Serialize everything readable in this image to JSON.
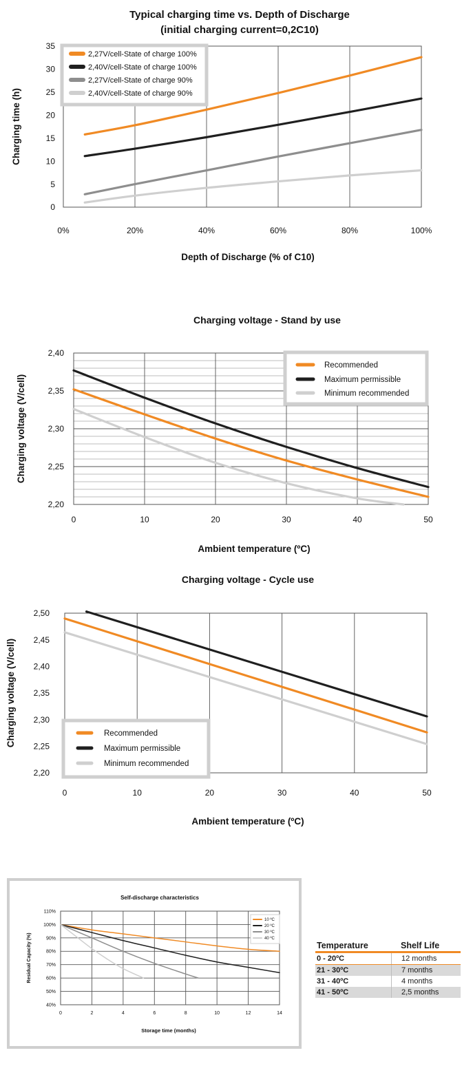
{
  "colors": {
    "orange": "#f08a24",
    "black": "#1f1f1f",
    "gray": "#8e8e8e",
    "lightgray": "#cfcfcf",
    "grid": "#5a5a5a",
    "legend_border": "#cfcfcf"
  },
  "chart_data": [
    {
      "type": "line",
      "title": "Typical charging time vs. Depth of Discharge",
      "subtitle": "(initial charging current=0,2C10)",
      "xlabel": "Depth of Discharge (% of C10)",
      "ylabel": "Charging time (h)",
      "xlim": [
        0,
        100
      ],
      "ylim": [
        0,
        35
      ],
      "xticks": [
        0,
        20,
        40,
        60,
        80,
        100
      ],
      "xtick_labels": [
        "0%",
        "20%",
        "40%",
        "60%",
        "80%",
        "100%"
      ],
      "yticks": [
        0,
        5,
        10,
        15,
        20,
        25,
        30,
        35
      ],
      "ytick_labels": [
        "0",
        "5",
        "10",
        "15",
        "20",
        "25",
        "30",
        "35"
      ],
      "grid": "vertical",
      "legend_position": "top-left",
      "series": [
        {
          "name": "2,27V/cell-State of charge 100%",
          "color": "orange",
          "x": [
            6,
            20,
            40,
            60,
            80,
            100
          ],
          "y": [
            15.8,
            17.8,
            21.2,
            24.8,
            28.6,
            32.6
          ]
        },
        {
          "name": "2,40V/cell-State of charge 100%",
          "color": "black",
          "x": [
            6,
            20,
            40,
            60,
            80,
            100
          ],
          "y": [
            11.1,
            12.7,
            15.2,
            17.9,
            20.7,
            23.6
          ]
        },
        {
          "name": "2,27V/cell-State of charge 90%",
          "color": "gray",
          "x": [
            6,
            20,
            40,
            60,
            80,
            100
          ],
          "y": [
            2.8,
            5.0,
            8.0,
            11.0,
            13.9,
            16.8
          ]
        },
        {
          "name": "2,40V/cell-State of charge 90%",
          "color": "lightgray",
          "x": [
            6,
            20,
            40,
            60,
            80,
            100
          ],
          "y": [
            1.0,
            2.5,
            4.2,
            5.6,
            6.9,
            8.0
          ]
        }
      ]
    },
    {
      "type": "line",
      "title": "Charging voltage - Stand by use",
      "xlabel": "Ambient temperature (ºC)",
      "ylabel": "Charging voltage (V/cell)",
      "xlim": [
        0,
        50
      ],
      "ylim": [
        2.2,
        2.4
      ],
      "xticks": [
        0,
        10,
        20,
        30,
        40,
        50
      ],
      "xtick_labels": [
        "0",
        "10",
        "20",
        "30",
        "40",
        "50"
      ],
      "yticks": [
        2.2,
        2.25,
        2.3,
        2.35,
        2.4
      ],
      "ytick_labels": [
        "2,20",
        "2,25",
        "2,30",
        "2,35",
        "2,40"
      ],
      "grid": "both, minor horizontal every 0,01",
      "legend_position": "top-right",
      "series": [
        {
          "name": "Recommended",
          "color": "orange",
          "x": [
            0,
            10,
            20,
            30,
            40,
            50
          ],
          "y": [
            2.352,
            2.319,
            2.287,
            2.258,
            2.233,
            2.21
          ]
        },
        {
          "name": "Maximum permissible",
          "color": "black",
          "x": [
            0,
            10,
            20,
            30,
            40,
            50
          ],
          "y": [
            2.377,
            2.341,
            2.307,
            2.276,
            2.248,
            2.223
          ]
        },
        {
          "name": "Minimum recommended",
          "color": "lightgray",
          "x": [
            0,
            10,
            20,
            30,
            40,
            46.5
          ],
          "y": [
            2.326,
            2.289,
            2.255,
            2.228,
            2.208,
            2.2
          ]
        }
      ]
    },
    {
      "type": "line",
      "title": "Charging voltage - Cycle use",
      "xlabel": "Ambient temperature (ºC)",
      "ylabel": "Charging voltage (V/cell)",
      "xlim": [
        0,
        50
      ],
      "ylim": [
        2.2,
        2.5
      ],
      "xticks": [
        0,
        10,
        20,
        30,
        40,
        50
      ],
      "xtick_labels": [
        "0",
        "10",
        "20",
        "30",
        "40",
        "50"
      ],
      "yticks": [
        2.2,
        2.25,
        2.3,
        2.35,
        2.4,
        2.45,
        2.5
      ],
      "ytick_labels": [
        "2,20",
        "2,25",
        "2,30",
        "2,35",
        "2,40",
        "2,45",
        "2,50"
      ],
      "grid": "vertical",
      "legend_position": "bottom-left",
      "series": [
        {
          "name": "Recommended",
          "color": "orange",
          "x": [
            0,
            50
          ],
          "y": [
            2.49,
            2.276
          ]
        },
        {
          "name": "Maximum permissible",
          "color": "black",
          "x": [
            3,
            50
          ],
          "y": [
            2.503,
            2.306
          ]
        },
        {
          "name": "Minimum recommended",
          "color": "lightgray",
          "x": [
            0,
            50
          ],
          "y": [
            2.464,
            2.254
          ]
        }
      ]
    },
    {
      "type": "line",
      "title": "Self-discharge characteristics",
      "xlabel": "Storage time (months)",
      "ylabel": "Residual Capacity (%)",
      "xlim": [
        0,
        14
      ],
      "ylim": [
        40,
        110
      ],
      "xticks": [
        0,
        2,
        4,
        6,
        8,
        10,
        12,
        14
      ],
      "xtick_labels": [
        "0",
        "2",
        "4",
        "6",
        "8",
        "10",
        "12",
        "14"
      ],
      "yticks": [
        40,
        50,
        60,
        70,
        80,
        90,
        100,
        110
      ],
      "ytick_labels": [
        "40%",
        "50%",
        "60%",
        "70%",
        "80%",
        "90%",
        "100%",
        "110%"
      ],
      "grid": "both",
      "legend_position": "top-right",
      "series": [
        {
          "name": "10 ºC",
          "color": "orange",
          "x": [
            0,
            2,
            4,
            6,
            8,
            10,
            12,
            14
          ],
          "y": [
            100,
            96,
            93,
            90,
            87,
            84,
            81.5,
            80
          ]
        },
        {
          "name": "20 ºC",
          "color": "black",
          "x": [
            0,
            2,
            4,
            6,
            8,
            10,
            12,
            14
          ],
          "y": [
            100,
            94,
            88,
            82.5,
            77,
            72,
            68,
            64
          ]
        },
        {
          "name": "30 ºC",
          "color": "gray",
          "x": [
            0,
            2,
            4,
            6,
            8,
            8.8
          ],
          "y": [
            100,
            90,
            80,
            71,
            63,
            60
          ]
        },
        {
          "name": "40 ºC",
          "color": "lightgray",
          "x": [
            0,
            1,
            2,
            3,
            4,
            5.3
          ],
          "y": [
            100,
            91,
            82,
            74,
            67,
            60
          ]
        }
      ]
    }
  ],
  "shelf_table": {
    "headers": [
      "Temperature",
      "Shelf Life"
    ],
    "rows": [
      [
        "0 - 20ºC",
        "12 months"
      ],
      [
        "21 - 30ºC",
        "7 months"
      ],
      [
        "31 - 40ºC",
        "4 months"
      ],
      [
        "41 - 50ºC",
        "2,5 months"
      ]
    ]
  }
}
